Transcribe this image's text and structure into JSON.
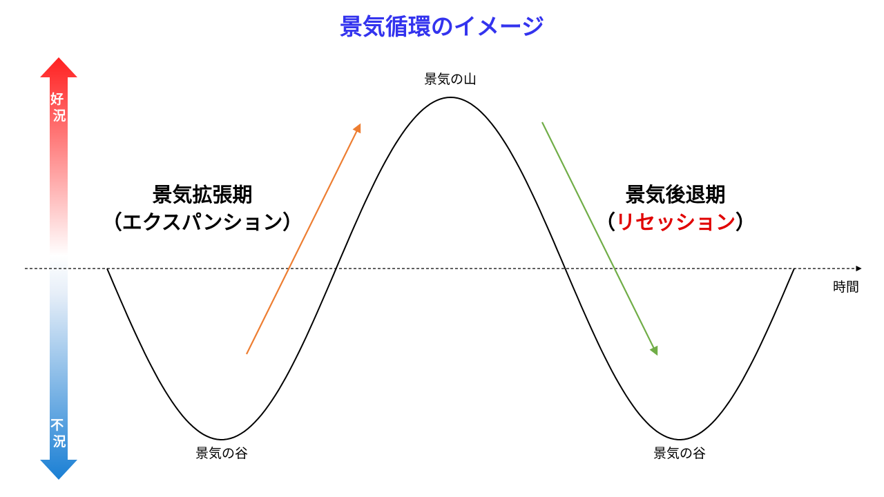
{
  "title": "景気循環のイメージ",
  "labels": {
    "peak": "景気の山",
    "trough_left": "景気の谷",
    "trough_right": "景気の谷",
    "time_axis": "時間"
  },
  "vertical_axis": {
    "top": "好況",
    "bottom": "不況",
    "top_color": "#ff2020",
    "bottom_color": "#1a7fd4"
  },
  "expansion": {
    "line1": "景気拡張期",
    "line2_open": "（",
    "line2_word": "エクスパンション",
    "line2_close": "）",
    "arrow_color": "#ed7d31"
  },
  "recession": {
    "line1": "景気後退期",
    "line2_open": "（",
    "line2_word": "リセッション",
    "line2_close": "）",
    "word_color": "#e00000",
    "arrow_color": "#70ad47"
  },
  "colors": {
    "title": "#3333ee",
    "curve": "#000000",
    "text": "#000000"
  }
}
